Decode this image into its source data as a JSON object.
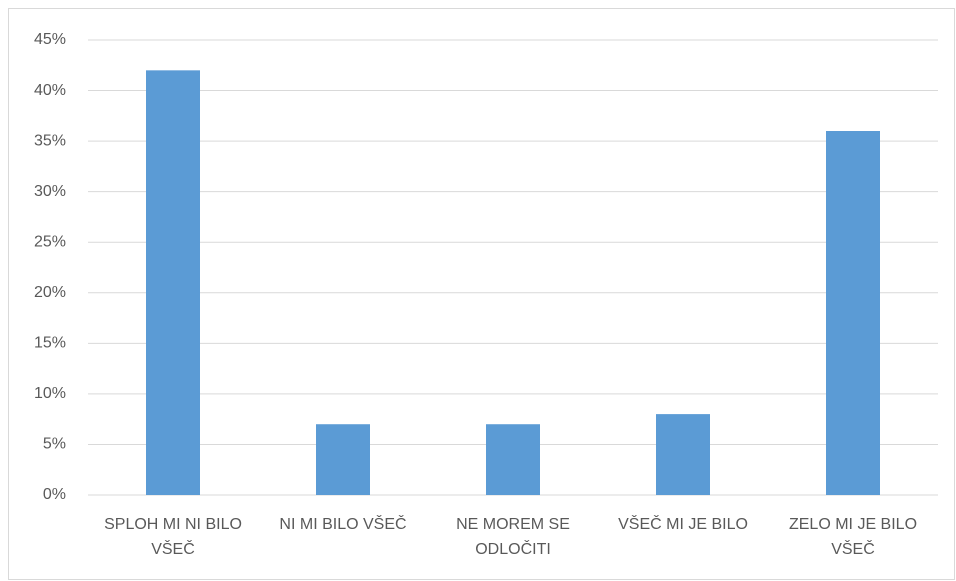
{
  "chart_data": {
    "type": "bar",
    "categories": [
      "SPLOH MI NI BILO VŠEČ",
      "NI MI BILO VŠEČ",
      "NE MOREM SE ODLOČITI",
      "VŠEČ MI JE BILO",
      "ZELO MI JE BILO VŠEČ"
    ],
    "values": [
      42,
      7,
      7,
      8,
      36
    ],
    "color": "#5b9bd5",
    "ylim": [
      0,
      45
    ],
    "yticks": [
      {
        "value": 0,
        "label": "0%"
      },
      {
        "value": 5,
        "label": "5%"
      },
      {
        "value": 10,
        "label": "10%"
      },
      {
        "value": 15,
        "label": "15%"
      },
      {
        "value": 20,
        "label": "20%"
      },
      {
        "value": 25,
        "label": "25%"
      },
      {
        "value": 30,
        "label": "30%"
      },
      {
        "value": 35,
        "label": "35%"
      },
      {
        "value": 40,
        "label": "40%"
      },
      {
        "value": 45,
        "label": "45%"
      }
    ],
    "grid": true
  }
}
